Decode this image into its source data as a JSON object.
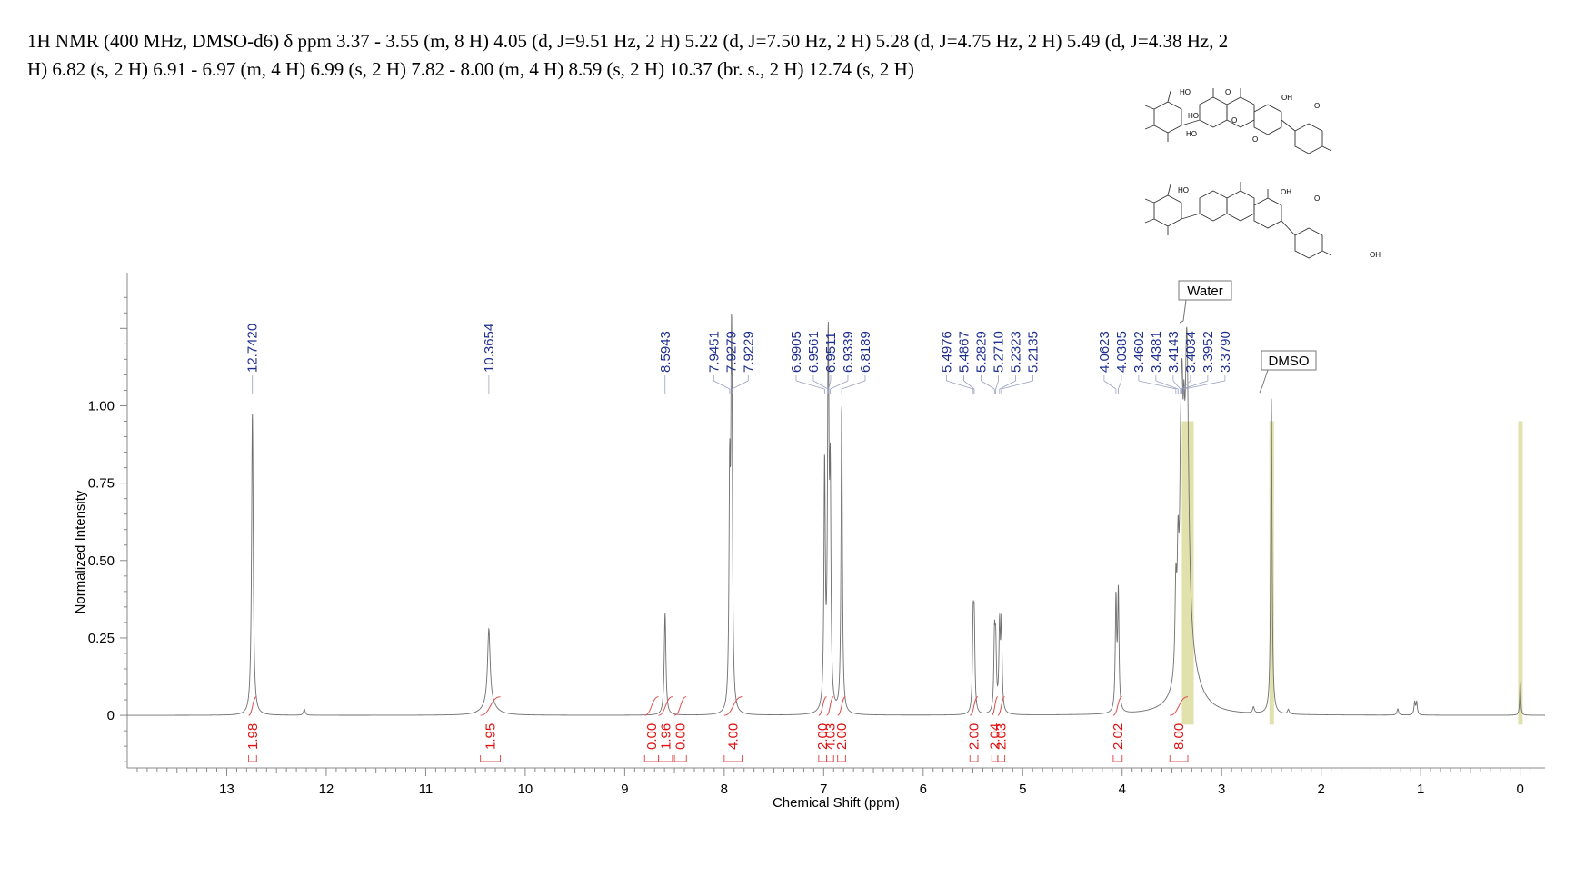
{
  "header": {
    "line1": "1H NMR (400 MHz, DMSO-d6) δ ppm 3.37 - 3.55 (m, 8 H) 4.05 (d, J=9.51 Hz, 2 H) 5.22 (d, J=7.50 Hz, 2 H) 5.28 (d, J=4.75 Hz, 2 H) 5.49 (d, J=4.38 Hz, 2",
    "line2": "H) 6.82 (s, 2 H) 6.91 - 6.97 (m, 4 H) 6.99 (s, 2 H) 7.82 - 8.00 (m, 4 H) 8.59 (s, 2 H) 10.37 (br. s., 2 H) 12.74 (s, 2 H)"
  },
  "structures": {
    "labels": [
      "HO",
      "O",
      "OH",
      "O",
      "HO",
      "HO",
      "O",
      "O",
      "HO",
      "OH",
      "O",
      "OH"
    ]
  },
  "annotations": {
    "water": "Water",
    "dmso": "DMSO"
  },
  "chart_data": {
    "type": "line",
    "title": "",
    "xlabel": "Chemical Shift (ppm)",
    "ylabel": "Normalized Intensity",
    "xlim": [
      14.0,
      -0.25
    ],
    "ylim": [
      -0.17,
      1.43
    ],
    "x_reversed": true,
    "x_ticks": [
      13,
      12,
      11,
      10,
      9,
      8,
      7,
      6,
      5,
      4,
      3,
      2,
      1,
      0
    ],
    "y_ticks": [
      {
        "value": 0,
        "label": "0"
      },
      {
        "value": 0.25,
        "label": "0.25"
      },
      {
        "value": 0.5,
        "label": "0.50"
      },
      {
        "value": 0.75,
        "label": "0.75"
      },
      {
        "value": 1.0,
        "label": "1.00"
      }
    ],
    "peaks": [
      {
        "x": 12.742,
        "y": 0.98,
        "w": 0.01
      },
      {
        "x": 12.22,
        "y": 0.02,
        "w": 0.01
      },
      {
        "x": 10.3654,
        "y": 0.24,
        "w": 0.015
      },
      {
        "x": 10.36,
        "y": 0.04,
        "w": 0.07
      },
      {
        "x": 8.5943,
        "y": 0.33,
        "w": 0.01
      },
      {
        "x": 7.9451,
        "y": 0.69,
        "w": 0.008
      },
      {
        "x": 7.9279,
        "y": 0.72,
        "w": 0.008
      },
      {
        "x": 7.9229,
        "y": 0.6,
        "w": 0.008
      },
      {
        "x": 6.9905,
        "y": 0.78,
        "w": 0.008
      },
      {
        "x": 6.9561,
        "y": 0.75,
        "w": 0.008
      },
      {
        "x": 6.9511,
        "y": 0.5,
        "w": 0.008
      },
      {
        "x": 6.9339,
        "y": 0.68,
        "w": 0.008
      },
      {
        "x": 6.8189,
        "y": 1.0,
        "w": 0.008
      },
      {
        "x": 5.4976,
        "y": 0.27,
        "w": 0.008
      },
      {
        "x": 5.4867,
        "y": 0.26,
        "w": 0.008
      },
      {
        "x": 5.2829,
        "y": 0.23,
        "w": 0.008
      },
      {
        "x": 5.271,
        "y": 0.2,
        "w": 0.008
      },
      {
        "x": 5.2323,
        "y": 0.27,
        "w": 0.008
      },
      {
        "x": 5.2135,
        "y": 0.28,
        "w": 0.008
      },
      {
        "x": 4.0623,
        "y": 0.36,
        "w": 0.008
      },
      {
        "x": 4.0385,
        "y": 0.38,
        "w": 0.008
      },
      {
        "x": 3.4602,
        "y": 0.28,
        "w": 0.01
      },
      {
        "x": 3.4381,
        "y": 0.34,
        "w": 0.01
      },
      {
        "x": 3.4143,
        "y": 0.38,
        "w": 0.01
      },
      {
        "x": 3.4034,
        "y": 0.36,
        "w": 0.01
      },
      {
        "x": 3.3952,
        "y": 0.4,
        "w": 0.01
      },
      {
        "x": 3.379,
        "y": 0.38,
        "w": 0.01
      },
      {
        "x": 3.35,
        "y": 1.02,
        "w": 0.022
      },
      {
        "x": 3.33,
        "y": 0.15,
        "w": 0.12
      },
      {
        "x": 2.5,
        "y": 1.02,
        "w": 0.008
      },
      {
        "x": 2.68,
        "y": 0.02,
        "w": 0.01
      },
      {
        "x": 2.33,
        "y": 0.015,
        "w": 0.01
      },
      {
        "x": 1.23,
        "y": 0.02,
        "w": 0.01
      },
      {
        "x": 1.06,
        "y": 0.04,
        "w": 0.008
      },
      {
        "x": 1.04,
        "y": 0.04,
        "w": 0.008
      },
      {
        "x": 0.0,
        "y": 0.11,
        "w": 0.006
      }
    ],
    "peak_label_groups": [
      {
        "labels": [
          "12.7420"
        ],
        "targets": [
          12.742
        ]
      },
      {
        "labels": [
          "10.3654"
        ],
        "targets": [
          10.3654
        ]
      },
      {
        "labels": [
          "8.5943"
        ],
        "targets": [
          8.5943
        ]
      },
      {
        "labels": [
          "7.9451",
          "7.9279",
          "7.9229"
        ],
        "targets": [
          7.9451,
          7.9279,
          7.9229
        ]
      },
      {
        "labels": [
          "6.9905",
          "6.9561",
          "6.9511",
          "6.9339",
          "6.8189"
        ],
        "targets": [
          6.9905,
          6.9561,
          6.9511,
          6.9339,
          6.8189
        ]
      },
      {
        "labels": [
          "5.4976",
          "5.4867",
          "5.2829",
          "5.2710",
          "5.2323",
          "5.2135"
        ],
        "targets": [
          5.4976,
          5.4867,
          5.2829,
          5.271,
          5.2323,
          5.2135
        ]
      },
      {
        "labels": [
          "4.0623",
          "4.0385",
          "3.4602",
          "3.4381",
          "3.4143",
          "3.4034",
          "3.3952",
          "3.3790"
        ],
        "targets": [
          4.0623,
          4.0385,
          3.4602,
          3.4381,
          3.4143,
          3.4034,
          3.3952,
          3.379
        ]
      }
    ],
    "integrals": [
      {
        "label": "1.98",
        "from": 12.78,
        "to": 12.7
      },
      {
        "label": "1.95",
        "from": 10.45,
        "to": 10.25
      },
      {
        "label": "0.00",
        "from": 8.8,
        "to": 8.66
      },
      {
        "label": "1.96",
        "from": 8.66,
        "to": 8.52
      },
      {
        "label": "0.00",
        "from": 8.5,
        "to": 8.38
      },
      {
        "label": "4.00",
        "from": 8.0,
        "to": 7.82
      },
      {
        "label": "2.00",
        "from": 7.05,
        "to": 6.97
      },
      {
        "label": "4.03",
        "from": 6.97,
        "to": 6.9
      },
      {
        "label": "2.00",
        "from": 6.86,
        "to": 6.78
      },
      {
        "label": "2.00",
        "from": 5.53,
        "to": 5.45
      },
      {
        "label": "2.04",
        "from": 5.31,
        "to": 5.25
      },
      {
        "label": "2.03",
        "from": 5.25,
        "to": 5.18
      },
      {
        "label": "2.02",
        "from": 4.09,
        "to": 4.0
      },
      {
        "label": "8.00",
        "from": 3.52,
        "to": 3.34
      }
    ],
    "highlight_regions": [
      [
        3.4,
        3.28
      ],
      [
        2.52,
        2.48
      ],
      [
        0.02,
        -0.02
      ]
    ]
  }
}
